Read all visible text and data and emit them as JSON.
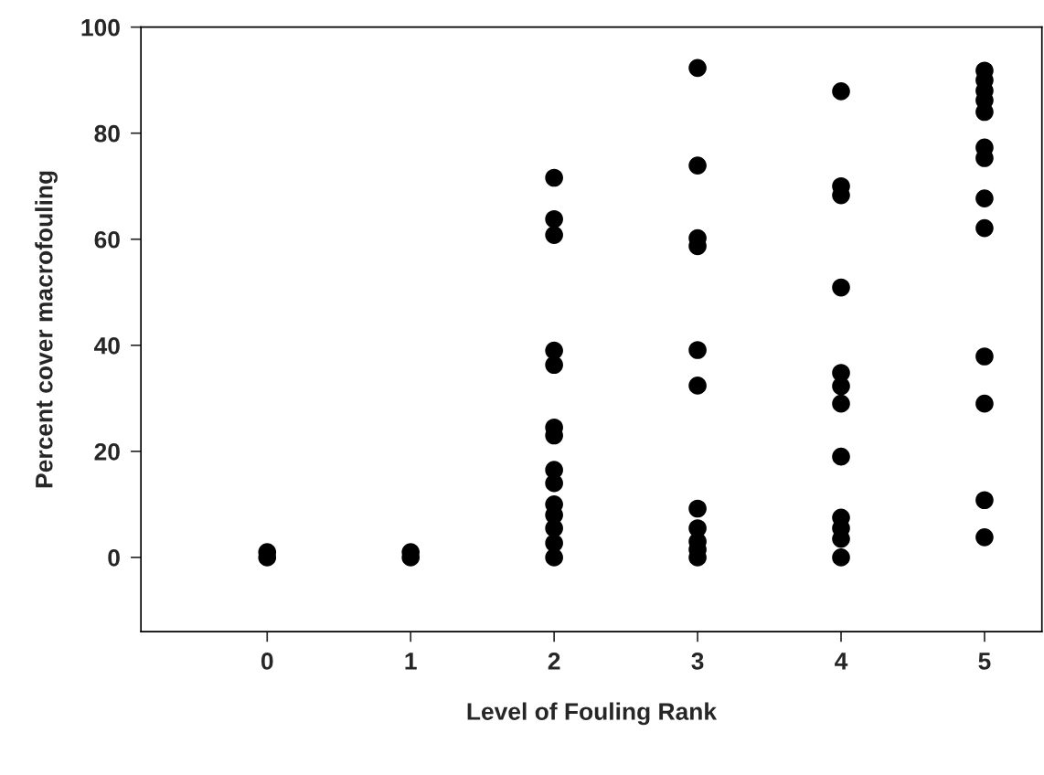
{
  "chart_data": {
    "type": "scatter",
    "xlabel": "Level of Fouling Rank",
    "ylabel": "Percent cover macrofouling",
    "xlim": [
      -0.88,
      5.4
    ],
    "xticks": [
      0,
      1,
      2,
      3,
      4,
      5
    ],
    "ylim": [
      -14,
      100
    ],
    "yticks": [
      0,
      20,
      40,
      60,
      80,
      100
    ],
    "grid": false,
    "legend": false,
    "marker": "circle",
    "series": [
      {
        "color": "#000000",
        "x": [
          0,
          0,
          1,
          1,
          2,
          2,
          2,
          2,
          2,
          2,
          2,
          2,
          2,
          2,
          2,
          2,
          2,
          2,
          3,
          3,
          3,
          3,
          3,
          3,
          3,
          3,
          3,
          3,
          3,
          4,
          4,
          4,
          4,
          4,
          4,
          4,
          4,
          4,
          4,
          4,
          4,
          5,
          5,
          5,
          5,
          5,
          5,
          5,
          5,
          5,
          5,
          5,
          5,
          5
        ],
        "values": [
          0,
          1,
          0,
          1,
          71.6,
          63.8,
          60.8,
          39,
          36.3,
          24.5,
          23,
          16.5,
          14,
          10,
          8,
          5.5,
          2.7,
          0,
          92.3,
          73.9,
          60.2,
          58.7,
          39.1,
          32.4,
          9.2,
          5.5,
          3,
          1.5,
          0,
          87.9,
          70,
          68.3,
          50.9,
          34.8,
          32.3,
          29,
          19,
          7.5,
          5.5,
          3.5,
          0,
          91.8,
          90,
          88,
          86.2,
          84,
          77.3,
          75.3,
          67.7,
          62.1,
          37.9,
          29,
          10.8,
          3.8
        ]
      }
    ]
  }
}
